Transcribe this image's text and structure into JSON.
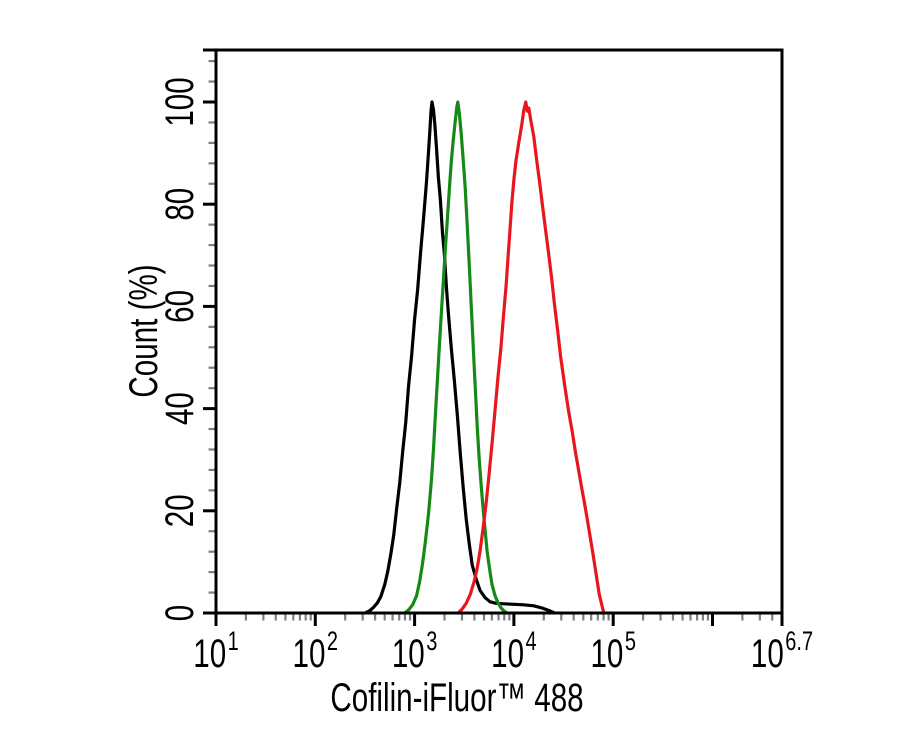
{
  "page": {
    "background": "#ffffff"
  },
  "chart_data": {
    "type": "line",
    "subtype": "flow-cytometry-overlay-histogram",
    "title": "",
    "xlabel": "Cofilin-iFluor™ 488",
    "ylabel": "Count (%)",
    "x_scale": "log10",
    "xlim_log10": [
      1,
      6.7
    ],
    "ylim": [
      0,
      110.2
    ],
    "grid": "off",
    "legend": "none",
    "axis_color": "#000000",
    "minor_tick_color": "#7f7f7f",
    "x_major_ticks_labeled": [
      {
        "log": 1,
        "base": "10",
        "exp": "1"
      },
      {
        "log": 2,
        "base": "10",
        "exp": "2"
      },
      {
        "log": 3,
        "base": "10",
        "exp": "3"
      },
      {
        "log": 4,
        "base": "10",
        "exp": "4"
      },
      {
        "log": 5,
        "base": "10",
        "exp": "5"
      },
      {
        "log": 6.7,
        "base": "10",
        "exp": "6.7"
      }
    ],
    "x_major_ticks_unlabeled": [
      6
    ],
    "x_minor_ticks": "log-decades-2-to-9",
    "y_major_ticks": [
      0,
      20,
      40,
      60,
      80,
      100
    ],
    "y_minor_step": 4,
    "y_top_edge_tick_pct": 110.2,
    "series": [
      {
        "name": "black-curve",
        "color": "#000000",
        "peak_log10_x": 3.175,
        "peak_pct": 100,
        "points": [
          [
            2.5,
            0
          ],
          [
            2.545,
            0.4
          ],
          [
            2.585,
            1.1
          ],
          [
            2.625,
            2.0
          ],
          [
            2.66,
            3.2
          ],
          [
            2.7,
            5.6
          ],
          [
            2.73,
            8.2
          ],
          [
            2.76,
            11.5
          ],
          [
            2.79,
            15.2
          ],
          [
            2.82,
            20.5
          ],
          [
            2.85,
            25.4
          ],
          [
            2.88,
            31.6
          ],
          [
            2.91,
            37.2
          ],
          [
            2.94,
            44.5
          ],
          [
            2.97,
            50.3
          ],
          [
            3.0,
            57.5
          ],
          [
            3.03,
            63.2
          ],
          [
            3.06,
            70.6
          ],
          [
            3.09,
            77.1
          ],
          [
            3.12,
            84.4
          ],
          [
            3.14,
            90.2
          ],
          [
            3.155,
            94.8
          ],
          [
            3.165,
            98.2
          ],
          [
            3.175,
            100
          ],
          [
            3.19,
            98.4
          ],
          [
            3.205,
            95.2
          ],
          [
            3.22,
            91.3
          ],
          [
            3.24,
            85.2
          ],
          [
            3.26,
            80.8
          ],
          [
            3.28,
            74.6
          ],
          [
            3.3,
            70.2
          ],
          [
            3.32,
            63.8
          ],
          [
            3.34,
            58.6
          ],
          [
            3.37,
            51.8
          ],
          [
            3.4,
            45.6
          ],
          [
            3.43,
            38.8
          ],
          [
            3.46,
            31.2
          ],
          [
            3.49,
            24.3
          ],
          [
            3.52,
            18.4
          ],
          [
            3.55,
            13.6
          ],
          [
            3.58,
            9.4
          ],
          [
            3.62,
            6.6
          ],
          [
            3.66,
            4.4
          ],
          [
            3.71,
            3.0
          ],
          [
            3.76,
            2.2
          ],
          [
            3.82,
            1.9
          ],
          [
            3.9,
            1.8
          ],
          [
            4.0,
            1.7
          ],
          [
            4.1,
            1.6
          ],
          [
            4.2,
            1.4
          ],
          [
            4.28,
            1.0
          ],
          [
            4.35,
            0.5
          ],
          [
            4.41,
            0
          ]
        ]
      },
      {
        "name": "green-curve",
        "color": "#168a16",
        "peak_log10_x": 3.435,
        "peak_pct": 100,
        "points": [
          [
            2.9,
            0
          ],
          [
            2.94,
            0.6
          ],
          [
            2.98,
            1.6
          ],
          [
            3.02,
            3.4
          ],
          [
            3.05,
            6.1
          ],
          [
            3.08,
            9.6
          ],
          [
            3.11,
            14.2
          ],
          [
            3.14,
            19.4
          ],
          [
            3.17,
            26.2
          ],
          [
            3.19,
            32.1
          ],
          [
            3.21,
            38.8
          ],
          [
            3.23,
            45.6
          ],
          [
            3.25,
            52.4
          ],
          [
            3.27,
            58.8
          ],
          [
            3.29,
            65.2
          ],
          [
            3.31,
            71.4
          ],
          [
            3.33,
            77.2
          ],
          [
            3.35,
            83.1
          ],
          [
            3.37,
            88.4
          ],
          [
            3.39,
            92.6
          ],
          [
            3.41,
            96.4
          ],
          [
            3.425,
            99.0
          ],
          [
            3.435,
            100
          ],
          [
            3.45,
            97.8
          ],
          [
            3.47,
            93.6
          ],
          [
            3.49,
            88.4
          ],
          [
            3.51,
            83.2
          ],
          [
            3.525,
            77.8
          ],
          [
            3.54,
            72.2
          ],
          [
            3.555,
            66.4
          ],
          [
            3.57,
            60.2
          ],
          [
            3.585,
            54.4
          ],
          [
            3.6,
            48.2
          ],
          [
            3.615,
            42.4
          ],
          [
            3.63,
            36.6
          ],
          [
            3.65,
            30.4
          ],
          [
            3.67,
            25.2
          ],
          [
            3.69,
            20.4
          ],
          [
            3.71,
            16.2
          ],
          [
            3.73,
            12.1
          ],
          [
            3.755,
            8.6
          ],
          [
            3.78,
            5.6
          ],
          [
            3.81,
            3.4
          ],
          [
            3.84,
            2.0
          ],
          [
            3.87,
            1.0
          ],
          [
            3.9,
            0.4
          ],
          [
            3.93,
            0
          ]
        ]
      },
      {
        "name": "red-curve",
        "color": "#e8171d",
        "peak_log10_x": 4.12,
        "peak_pct": 100,
        "points": [
          [
            3.44,
            0
          ],
          [
            3.48,
            0.8
          ],
          [
            3.52,
            1.9
          ],
          [
            3.56,
            3.6
          ],
          [
            3.6,
            6.2
          ],
          [
            3.63,
            8.8
          ],
          [
            3.66,
            12.2
          ],
          [
            3.69,
            16.6
          ],
          [
            3.72,
            21.4
          ],
          [
            3.75,
            27.2
          ],
          [
            3.78,
            33.1
          ],
          [
            3.81,
            39.6
          ],
          [
            3.84,
            46.2
          ],
          [
            3.87,
            52.1
          ],
          [
            3.895,
            58.2
          ],
          [
            3.92,
            63.8
          ],
          [
            3.94,
            69.2
          ],
          [
            3.96,
            74.8
          ],
          [
            3.98,
            80.4
          ],
          [
            4.0,
            84.8
          ],
          [
            4.02,
            88.4
          ],
          [
            4.05,
            92.2
          ],
          [
            4.08,
            95.6
          ],
          [
            4.1,
            98.4
          ],
          [
            4.12,
            100
          ],
          [
            4.135,
            98.2
          ],
          [
            4.15,
            98.8
          ],
          [
            4.17,
            96.4
          ],
          [
            4.2,
            93.2
          ],
          [
            4.23,
            88.6
          ],
          [
            4.26,
            84.2
          ],
          [
            4.29,
            79.4
          ],
          [
            4.32,
            74.8
          ],
          [
            4.35,
            70.4
          ],
          [
            4.38,
            65.6
          ],
          [
            4.41,
            60.2
          ],
          [
            4.44,
            55.4
          ],
          [
            4.47,
            50.2
          ],
          [
            4.51,
            44.8
          ],
          [
            4.55,
            39.6
          ],
          [
            4.59,
            35.2
          ],
          [
            4.62,
            31.4
          ],
          [
            4.65,
            28.2
          ],
          [
            4.68,
            24.8
          ],
          [
            4.71,
            21.6
          ],
          [
            4.74,
            18.2
          ],
          [
            4.77,
            14.6
          ],
          [
            4.8,
            11.2
          ],
          [
            4.83,
            7.4
          ],
          [
            4.86,
            3.6
          ],
          [
            4.89,
            1.2
          ],
          [
            4.905,
            0
          ]
        ]
      }
    ]
  }
}
